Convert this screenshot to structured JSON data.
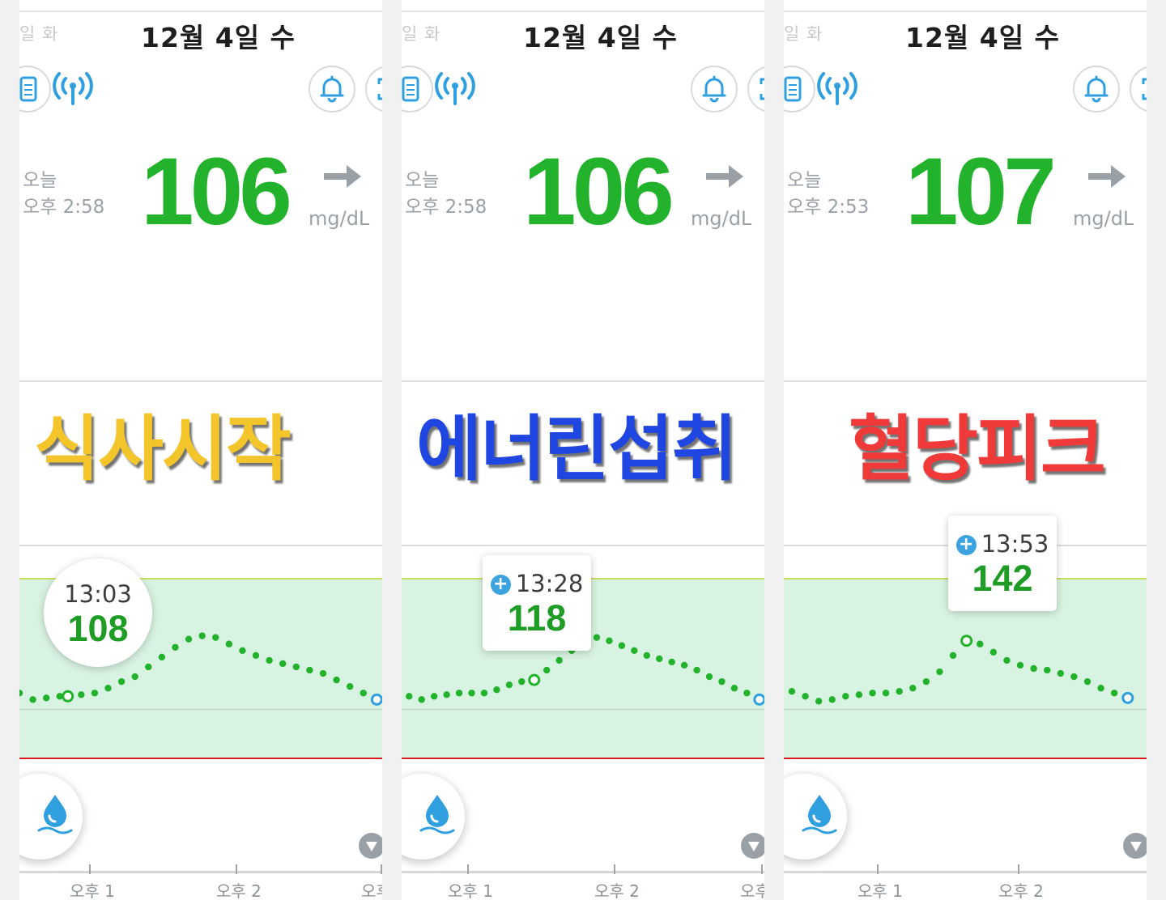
{
  "status_colors": {
    "glucose_green": "#22b22c",
    "target_band": "#d9f3e2",
    "high_limit": "#c8de5a",
    "low_limit": "#d81e1e",
    "accent_blue": "#2f9fe0",
    "overlay_yellow": "#f4c52a",
    "overlay_blue": "#1f46e0",
    "overlay_red": "#f03a3a"
  },
  "panels": [
    {
      "prev_day": "일 화",
      "date": "12월 4일 수",
      "today_label": "오늘",
      "reading_time": "오후 2:58",
      "glucose": "106",
      "trend_arrow": "→",
      "unit": "mg/dL",
      "overlay_text": "식사시작",
      "tooltip": {
        "time": "13:03",
        "value": "108",
        "style": "circle"
      },
      "x_ticks": [
        "오후 1",
        "오후 2",
        "오후"
      ]
    },
    {
      "prev_day": "일 화",
      "date": "12월 4일 수",
      "today_label": "오늘",
      "reading_time": "오후 2:58",
      "glucose": "106",
      "trend_arrow": "→",
      "unit": "mg/dL",
      "overlay_text": "에너린섭취",
      "tooltip": {
        "time": "13:28",
        "value": "118",
        "style": "box"
      },
      "x_ticks": [
        "오후 1",
        "오후 2",
        "오후"
      ]
    },
    {
      "prev_day": "일 화",
      "date": "12월 4일 수",
      "today_label": "오늘",
      "reading_time": "오후 2:53",
      "glucose": "107",
      "trend_arrow": "→",
      "unit": "mg/dL",
      "overlay_text": "혈당피크",
      "tooltip": {
        "time": "13:53",
        "value": "142",
        "style": "box"
      },
      "x_ticks": [
        "오후 1",
        "오후 2"
      ]
    }
  ],
  "chart_data": [
    {
      "type": "scatter",
      "title": "",
      "xlabel": "",
      "ylabel": "mg/dL",
      "x_range": [
        "12:45",
        "15:00"
      ],
      "ylim": [
        40,
        220
      ],
      "target_range": [
        70,
        180
      ],
      "x": [
        "12:45",
        "12:50",
        "12:55",
        "13:00",
        "13:03",
        "13:08",
        "13:13",
        "13:18",
        "13:23",
        "13:28",
        "13:33",
        "13:38",
        "13:43",
        "13:48",
        "13:53",
        "13:58",
        "14:03",
        "14:08",
        "14:13",
        "14:18",
        "14:23",
        "14:28",
        "14:33",
        "14:38",
        "14:43",
        "14:48",
        "14:53",
        "14:58"
      ],
      "values": [
        110,
        106,
        107,
        108,
        108,
        109,
        110,
        113,
        117,
        120,
        126,
        132,
        138,
        143,
        145,
        144,
        140,
        136,
        133,
        130,
        128,
        126,
        124,
        122,
        118,
        114,
        110,
        106
      ],
      "highlight_index": 4,
      "latest_index": 27
    },
    {
      "type": "scatter",
      "title": "",
      "xlabel": "",
      "ylabel": "mg/dL",
      "x_range": [
        "12:35",
        "15:00"
      ],
      "ylim": [
        40,
        220
      ],
      "target_range": [
        70,
        180
      ],
      "x": [
        "12:38",
        "12:43",
        "12:48",
        "12:53",
        "12:58",
        "13:03",
        "13:08",
        "13:13",
        "13:18",
        "13:23",
        "13:28",
        "13:33",
        "13:38",
        "13:43",
        "13:48",
        "13:53",
        "13:58",
        "14:03",
        "14:08",
        "14:13",
        "14:18",
        "14:23",
        "14:28",
        "14:33",
        "14:38",
        "14:43",
        "14:48",
        "14:53",
        "14:58"
      ],
      "values": [
        108,
        106,
        108,
        109,
        110,
        110,
        110,
        112,
        115,
        117,
        118,
        124,
        130,
        136,
        142,
        144,
        142,
        139,
        136,
        133,
        131,
        129,
        127,
        124,
        120,
        117,
        113,
        110,
        106
      ],
      "highlight_index": 10,
      "latest_index": 28
    },
    {
      "type": "scatter",
      "title": "",
      "xlabel": "",
      "ylabel": "mg/dL",
      "x_range": [
        "12:45",
        "15:00"
      ],
      "ylim": [
        40,
        220
      ],
      "target_range": [
        70,
        180
      ],
      "x": [
        "12:43",
        "12:48",
        "12:53",
        "12:58",
        "13:03",
        "13:08",
        "13:13",
        "13:18",
        "13:23",
        "13:28",
        "13:33",
        "13:38",
        "13:43",
        "13:48",
        "13:53",
        "13:58",
        "14:03",
        "14:08",
        "14:13",
        "14:18",
        "14:23",
        "14:28",
        "14:33",
        "14:38",
        "14:43",
        "14:48",
        "14:53"
      ],
      "values": [
        112,
        111,
        108,
        105,
        106,
        108,
        109,
        110,
        110,
        111,
        113,
        117,
        123,
        133,
        142,
        140,
        135,
        130,
        127,
        125,
        124,
        122,
        120,
        117,
        113,
        110,
        107
      ],
      "highlight_index": 14,
      "latest_index": 26
    }
  ]
}
